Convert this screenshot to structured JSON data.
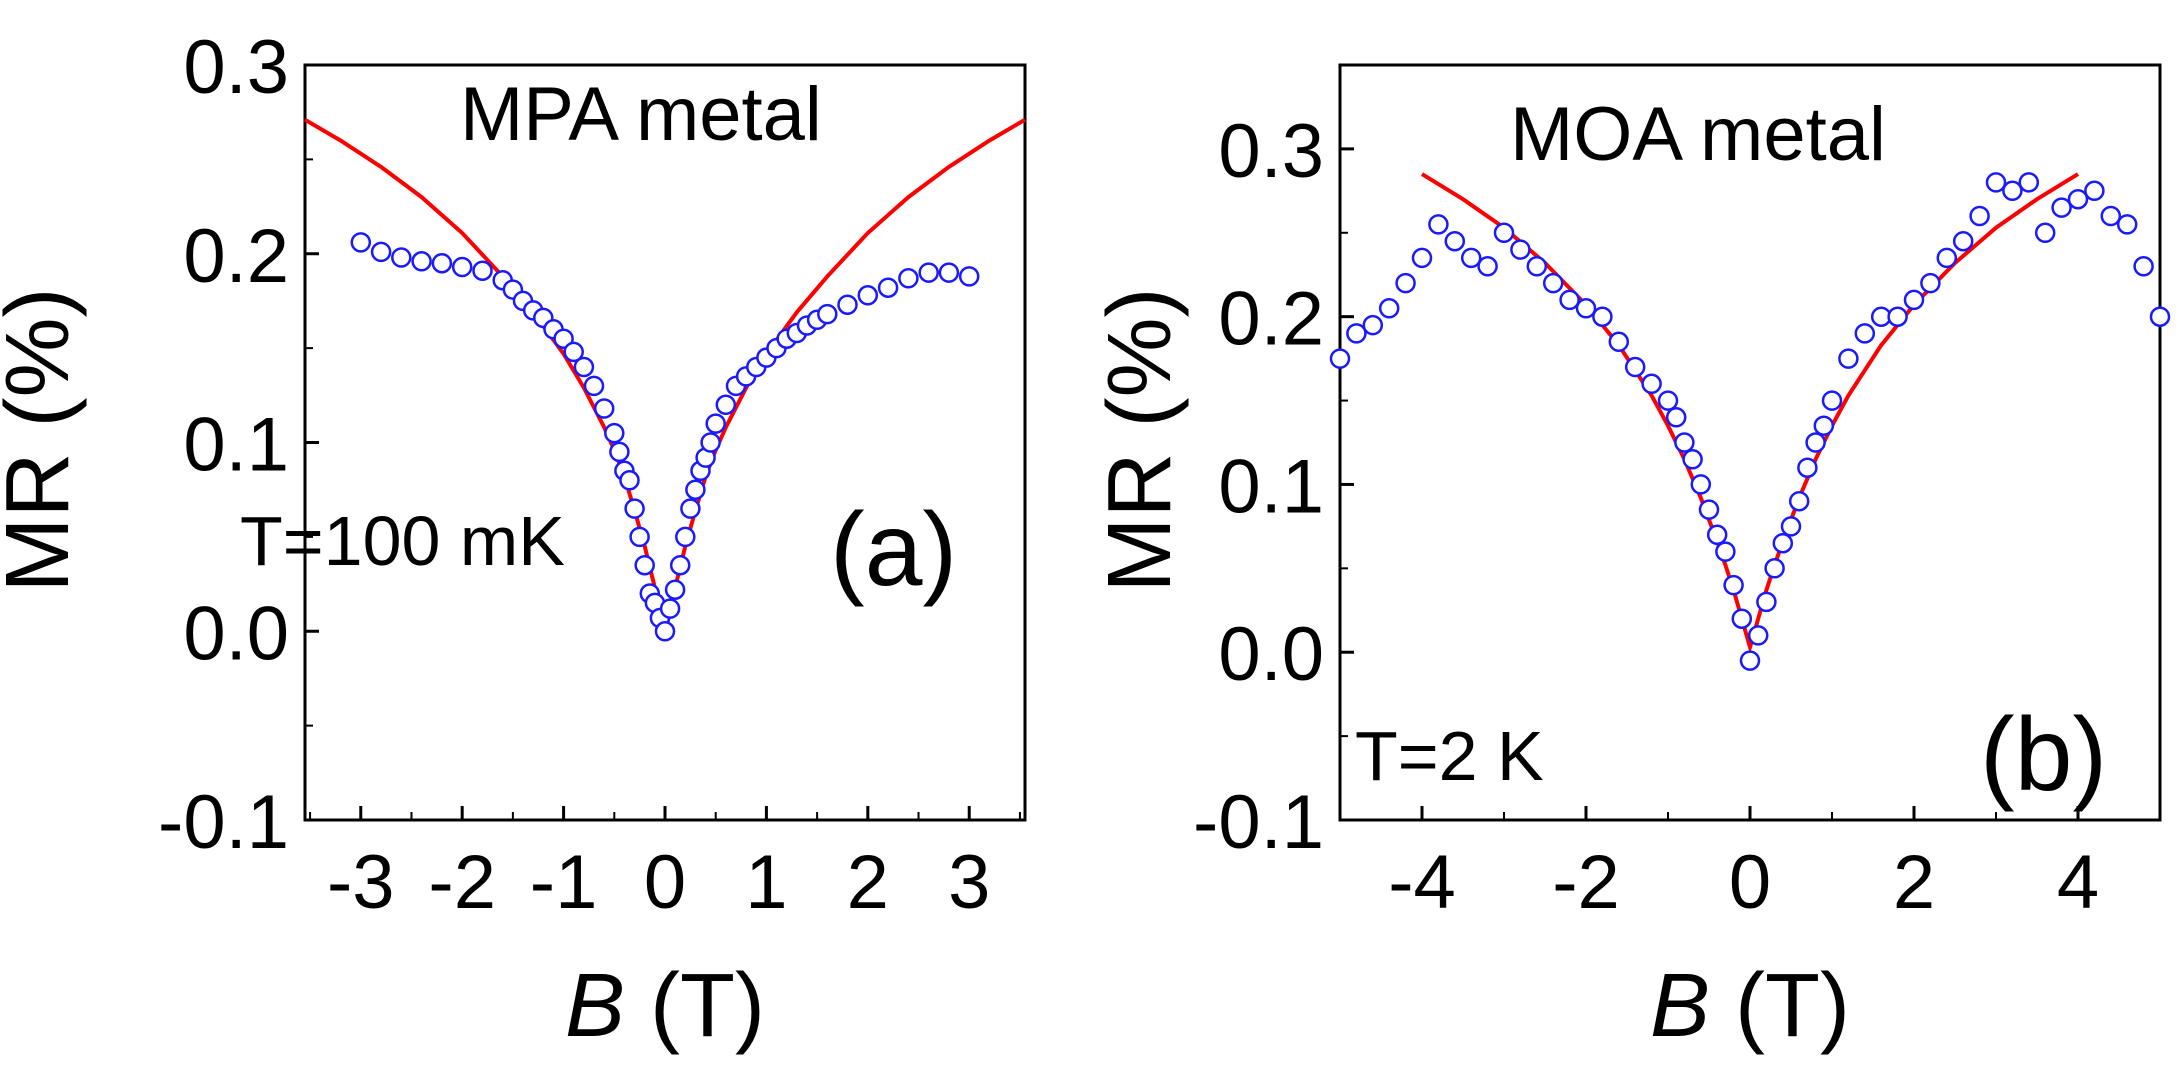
{
  "chart_data": [
    {
      "type": "scatter",
      "panel_label": "(a)",
      "title": "MPA metal",
      "annotation": "T=100 mK",
      "xlabel_italic": "B",
      "xlabel_rest": " (T)",
      "ylabel": "MR (%)",
      "xlim": [
        -3.55,
        3.55
      ],
      "ylim": [
        -0.1,
        0.3
      ],
      "xticks": [
        -3,
        -2,
        -1,
        0,
        1,
        2,
        3
      ],
      "xticklabels": [
        "-3",
        "-2",
        "-1",
        "0",
        "1",
        "2",
        "3"
      ],
      "yticks": [
        -0.1,
        0.0,
        0.1,
        0.2,
        0.3
      ],
      "yticklabels": [
        "-0.1",
        "0.0",
        "0.1",
        "0.2",
        "0.3"
      ],
      "series": [
        {
          "name": "data",
          "style": "open-circle",
          "color": "#1a1aff",
          "x": [
            -3.0,
            -2.8,
            -2.6,
            -2.4,
            -2.2,
            -2.0,
            -1.8,
            -1.6,
            -1.5,
            -1.4,
            -1.3,
            -1.2,
            -1.1,
            -1.0,
            -0.9,
            -0.8,
            -0.7,
            -0.6,
            -0.5,
            -0.45,
            -0.4,
            -0.35,
            -0.3,
            -0.25,
            -0.2,
            -0.15,
            -0.1,
            -0.05,
            0.0,
            0.05,
            0.1,
            0.15,
            0.2,
            0.25,
            0.3,
            0.35,
            0.4,
            0.45,
            0.5,
            0.6,
            0.7,
            0.8,
            0.9,
            1.0,
            1.1,
            1.2,
            1.3,
            1.4,
            1.5,
            1.6,
            1.8,
            2.0,
            2.2,
            2.4,
            2.6,
            2.8,
            3.0
          ],
          "y": [
            0.206,
            0.201,
            0.198,
            0.196,
            0.195,
            0.193,
            0.191,
            0.186,
            0.181,
            0.175,
            0.17,
            0.166,
            0.16,
            0.155,
            0.148,
            0.14,
            0.13,
            0.118,
            0.105,
            0.095,
            0.085,
            0.08,
            0.065,
            0.05,
            0.035,
            0.02,
            0.015,
            0.007,
            0.0,
            0.012,
            0.022,
            0.035,
            0.05,
            0.065,
            0.075,
            0.085,
            0.092,
            0.1,
            0.11,
            0.12,
            0.13,
            0.135,
            0.14,
            0.145,
            0.15,
            0.155,
            0.158,
            0.162,
            0.165,
            0.168,
            0.173,
            0.178,
            0.182,
            0.187,
            0.19,
            0.19,
            0.188
          ]
        },
        {
          "name": "fit",
          "style": "line",
          "color": "#ff0000",
          "x": [
            -3.55,
            -3.2,
            -2.8,
            -2.4,
            -2.0,
            -1.6,
            -1.3,
            -1.0,
            -0.8,
            -0.6,
            -0.5,
            -0.4,
            -0.3,
            -0.2,
            -0.1,
            -0.05,
            0.0,
            0.05,
            0.1,
            0.2,
            0.3,
            0.4,
            0.5,
            0.6,
            0.8,
            1.0,
            1.3,
            1.6,
            2.0,
            2.4,
            2.8,
            3.2,
            3.55
          ],
          "y": [
            0.271,
            0.26,
            0.246,
            0.23,
            0.211,
            0.188,
            0.169,
            0.147,
            0.129,
            0.108,
            0.096,
            0.082,
            0.064,
            0.045,
            0.023,
            0.01,
            0.0,
            0.01,
            0.023,
            0.045,
            0.064,
            0.082,
            0.096,
            0.108,
            0.129,
            0.147,
            0.169,
            0.188,
            0.211,
            0.23,
            0.246,
            0.26,
            0.271
          ]
        }
      ]
    },
    {
      "type": "scatter",
      "panel_label": "(b)",
      "title": "MOA metal",
      "annotation": "T=2 K",
      "xlabel_italic": "B",
      "xlabel_rest": " (T)",
      "ylabel": "MR (%)",
      "xlim": [
        -5.0,
        5.0
      ],
      "ylim": [
        -0.1,
        0.35
      ],
      "xticks": [
        -4,
        -2,
        0,
        2,
        4
      ],
      "xticklabels": [
        "-4",
        "-2",
        "0",
        "2",
        "4"
      ],
      "yticks": [
        -0.1,
        0.0,
        0.1,
        0.2,
        0.3
      ],
      "yticklabels": [
        "-0.1",
        "0.0",
        "0.1",
        "0.2",
        "0.3"
      ],
      "series": [
        {
          "name": "data",
          "style": "open-circle",
          "color": "#1a1aff",
          "x": [
            -5.0,
            -4.8,
            -4.6,
            -4.4,
            -4.2,
            -4.0,
            -3.8,
            -3.6,
            -3.4,
            -3.2,
            -3.0,
            -2.8,
            -2.6,
            -2.4,
            -2.2,
            -2.0,
            -1.8,
            -1.6,
            -1.4,
            -1.2,
            -1.0,
            -0.9,
            -0.8,
            -0.7,
            -0.6,
            -0.5,
            -0.4,
            -0.3,
            -0.2,
            -0.1,
            0.0,
            0.1,
            0.2,
            0.3,
            0.4,
            0.5,
            0.6,
            0.7,
            0.8,
            0.9,
            1.0,
            1.2,
            1.4,
            1.6,
            1.8,
            2.0,
            2.2,
            2.4,
            2.6,
            2.8,
            3.0,
            3.2,
            3.4,
            3.6,
            3.8,
            4.0,
            4.2,
            4.4,
            4.6,
            4.8,
            5.0
          ],
          "y": [
            0.175,
            0.19,
            0.195,
            0.205,
            0.22,
            0.235,
            0.255,
            0.245,
            0.235,
            0.23,
            0.25,
            0.24,
            0.23,
            0.22,
            0.21,
            0.205,
            0.2,
            0.185,
            0.17,
            0.16,
            0.15,
            0.14,
            0.125,
            0.115,
            0.1,
            0.085,
            0.07,
            0.06,
            0.04,
            0.02,
            -0.005,
            0.01,
            0.03,
            0.05,
            0.065,
            0.075,
            0.09,
            0.11,
            0.125,
            0.135,
            0.15,
            0.175,
            0.19,
            0.2,
            0.2,
            0.21,
            0.22,
            0.235,
            0.245,
            0.26,
            0.28,
            0.275,
            0.28,
            0.25,
            0.265,
            0.27,
            0.275,
            0.26,
            0.255,
            0.23,
            0.2
          ]
        },
        {
          "name": "fit",
          "style": "line",
          "color": "#ff0000",
          "x": [
            -4.0,
            -3.5,
            -3.0,
            -2.5,
            -2.0,
            -1.6,
            -1.2,
            -1.0,
            -0.8,
            -0.6,
            -0.4,
            -0.3,
            -0.2,
            -0.1,
            0.0,
            0.1,
            0.2,
            0.3,
            0.4,
            0.6,
            0.8,
            1.0,
            1.2,
            1.6,
            2.0,
            2.5,
            3.0,
            3.5,
            4.0
          ],
          "y": [
            0.285,
            0.27,
            0.253,
            0.232,
            0.207,
            0.183,
            0.153,
            0.135,
            0.115,
            0.092,
            0.066,
            0.052,
            0.037,
            0.02,
            0.003,
            0.02,
            0.037,
            0.052,
            0.066,
            0.092,
            0.115,
            0.135,
            0.153,
            0.183,
            0.207,
            0.232,
            0.253,
            0.27,
            0.285
          ]
        }
      ]
    }
  ]
}
